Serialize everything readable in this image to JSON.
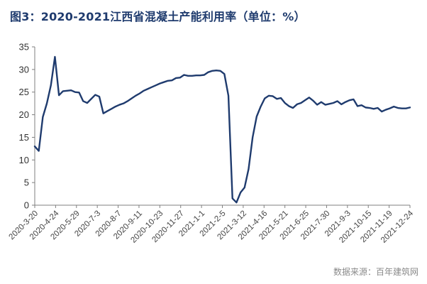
{
  "chart_data": {
    "type": "line",
    "title": "图3：2020-2021江西省混凝土产能利用率（单位：%）",
    "xlabel": "",
    "ylabel": "",
    "ylim": [
      0,
      35
    ],
    "yticks": [
      "0",
      "5",
      "10",
      "15",
      "20",
      "25",
      "30",
      "35"
    ],
    "xtick_labels": [
      "2020-3-20",
      "2020-4-24",
      "2020-5-29",
      "2020-7-3",
      "2020-8-7",
      "2020-9-11",
      "2020-10-23",
      "2020-11-27",
      "2021-1-1",
      "2021-2-5",
      "2021-3-12",
      "2021-4-16",
      "2021-5-21",
      "2021-6-25",
      "2021-7-30",
      "2021-9-3",
      "2021-10-15",
      "2021-11-19",
      "2021-12-24"
    ],
    "grid": false,
    "legend": "none",
    "series": [
      {
        "color": "#1f3b6e",
        "values": [
          13.0,
          12.0,
          19.5,
          22.5,
          26.5,
          32.8,
          24.3,
          25.2,
          25.3,
          25.4,
          25.0,
          24.9,
          23.0,
          22.6,
          23.5,
          24.4,
          24.0,
          20.3,
          20.8,
          21.3,
          21.8,
          22.2,
          22.5,
          23.0,
          23.6,
          24.2,
          24.7,
          25.3,
          25.7,
          26.1,
          26.5,
          26.9,
          27.2,
          27.5,
          27.6,
          28.1,
          28.2,
          28.8,
          28.6,
          28.6,
          28.7,
          28.7,
          28.8,
          29.4,
          29.7,
          29.8,
          29.7,
          29.0,
          24.2,
          1.5,
          0.6,
          2.8,
          3.9,
          8.0,
          15.0,
          19.6,
          21.8,
          23.6,
          24.2,
          24.1,
          23.5,
          23.7,
          22.6,
          21.9,
          21.5,
          22.3,
          22.6,
          23.2,
          23.8,
          23.1,
          22.2,
          22.8,
          22.2,
          22.4,
          22.6,
          23.0,
          22.3,
          22.8,
          23.2,
          23.4,
          21.9,
          22.1,
          21.6,
          21.5,
          21.3,
          21.5,
          20.7,
          21.1,
          21.4,
          21.8,
          21.5,
          21.4,
          21.4,
          21.6
        ]
      }
    ]
  },
  "footer": {
    "source": "数据来源：百年建筑网"
  }
}
